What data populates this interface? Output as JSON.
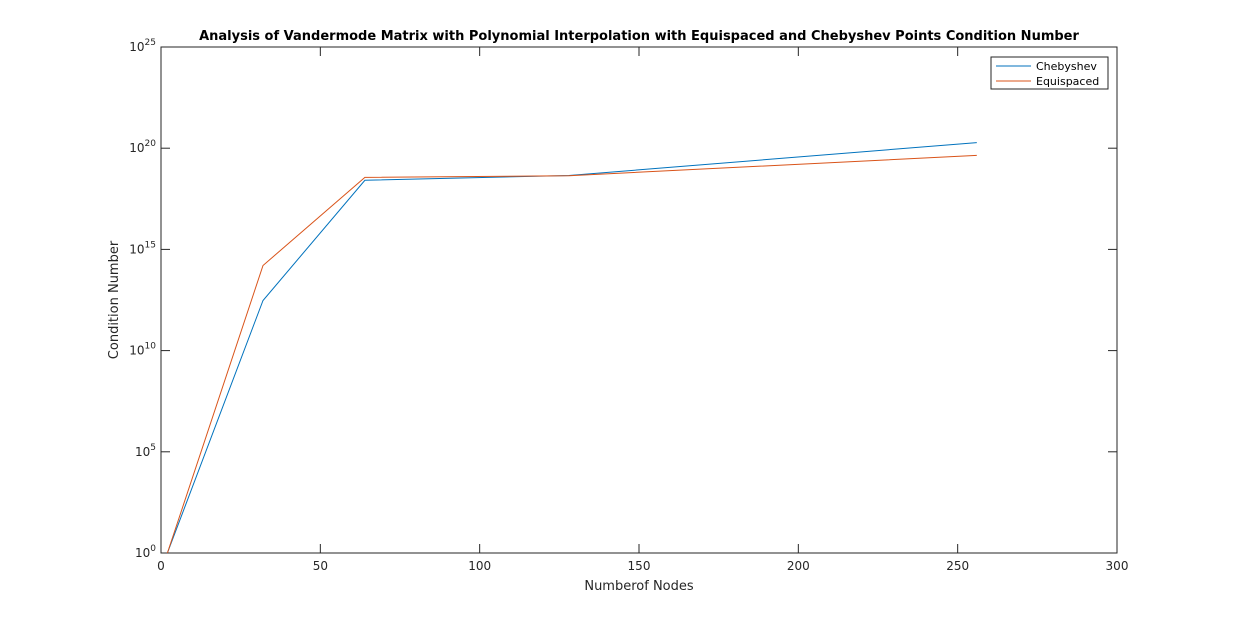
{
  "chart_data": {
    "type": "line",
    "title": "Analysis of Vandermode Matrix with Polynomial Interpolation with Equispaced and Chebyshev Points Condition Number",
    "xlabel": "Numberof Nodes",
    "ylabel": "Condition Number",
    "xlim": [
      0,
      300
    ],
    "ylim": [
      1,
      1e+25
    ],
    "yscale": "log",
    "grid": false,
    "legend_position": "top-right",
    "x_ticks": [
      {
        "value": 0,
        "label": "0"
      },
      {
        "value": 50,
        "label": "50"
      },
      {
        "value": 100,
        "label": "100"
      },
      {
        "value": 150,
        "label": "150"
      },
      {
        "value": 200,
        "label": "200"
      },
      {
        "value": 250,
        "label": "250"
      },
      {
        "value": 300,
        "label": "300"
      }
    ],
    "y_ticks": [
      {
        "value": 1,
        "base": "10",
        "exp": "0"
      },
      {
        "value": 100000.0,
        "base": "10",
        "exp": "5"
      },
      {
        "value": 10000000000.0,
        "base": "10",
        "exp": "10"
      },
      {
        "value": 1000000000000000.0,
        "base": "10",
        "exp": "15"
      },
      {
        "value": 1e+20,
        "base": "10",
        "exp": "20"
      },
      {
        "value": 1e+25,
        "base": "10",
        "exp": "25"
      }
    ],
    "series": [
      {
        "name": "Chebyshev",
        "color": "#0072BD",
        "x": [
          2,
          32,
          64,
          128,
          256
        ],
        "y": [
          1,
          3000000000000.0,
          2.6e+18,
          4.5e+18,
          1.9e+20
        ]
      },
      {
        "name": "Equispaced",
        "color": "#D95319",
        "x": [
          2,
          32,
          64,
          128,
          256
        ],
        "y": [
          1,
          160000000000000.0,
          3.6e+18,
          4.4e+18,
          4.4e+19
        ]
      }
    ]
  }
}
